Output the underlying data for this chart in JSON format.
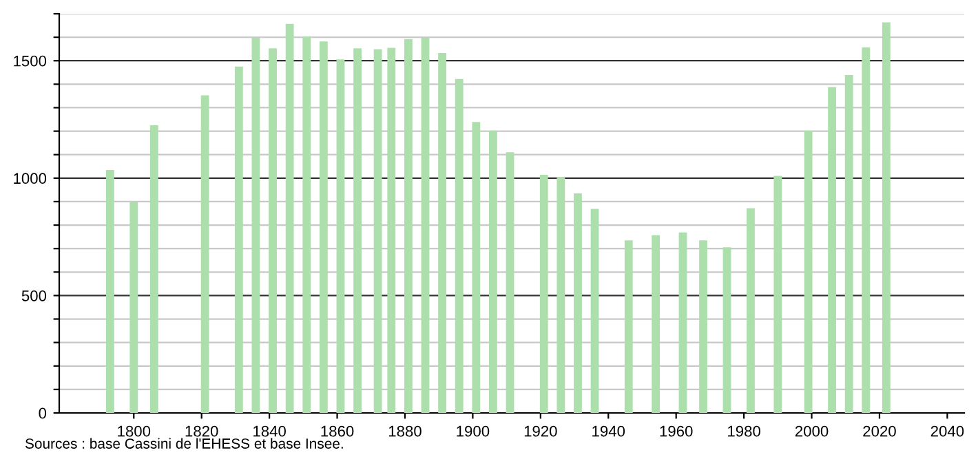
{
  "chart_data": {
    "type": "bar",
    "x": [
      1793,
      1800,
      1806,
      1821,
      1831,
      1836,
      1841,
      1846,
      1851,
      1856,
      1861,
      1866,
      1872,
      1876,
      1881,
      1886,
      1891,
      1896,
      1901,
      1906,
      1911,
      1921,
      1926,
      1931,
      1936,
      1946,
      1954,
      1962,
      1968,
      1975,
      1982,
      1990,
      1999,
      2006,
      2011,
      2016,
      2022
    ],
    "values": [
      1035,
      898,
      1225,
      1353,
      1475,
      1598,
      1553,
      1657,
      1604,
      1582,
      1506,
      1553,
      1549,
      1555,
      1592,
      1598,
      1533,
      1422,
      1239,
      1202,
      1110,
      1014,
      1004,
      935,
      869,
      735,
      757,
      769,
      735,
      706,
      872,
      1010,
      1202,
      1388,
      1439,
      1557,
      1663
    ],
    "color": "#addfad",
    "xlim": [
      1778,
      2045
    ],
    "xticks": [
      1800,
      1820,
      1840,
      1860,
      1880,
      1900,
      1920,
      1940,
      1960,
      1980,
      2000,
      2020,
      2040
    ],
    "ylim": [
      0,
      1700
    ],
    "yticks": [
      0,
      {
        "value": 100,
        "label": null
      },
      {
        "value": 200,
        "label": null
      },
      {
        "value": 300,
        "label": null
      },
      {
        "value": 400,
        "label": null
      },
      500,
      {
        "value": 600,
        "label": null
      },
      {
        "value": 700,
        "label": null
      },
      {
        "value": 800,
        "label": null
      },
      {
        "value": 900,
        "label": null
      },
      1000,
      {
        "value": 1100,
        "label": null
      },
      {
        "value": 1200,
        "label": null
      },
      {
        "value": 1300,
        "label": null
      },
      {
        "value": 1400,
        "label": null
      },
      1500,
      {
        "value": 1600,
        "label": null
      },
      {
        "value": 1700,
        "label": null
      }
    ],
    "grid": "y",
    "annotations": [
      "Sources : base Cassini de l'EHESS et base Insee."
    ]
  }
}
